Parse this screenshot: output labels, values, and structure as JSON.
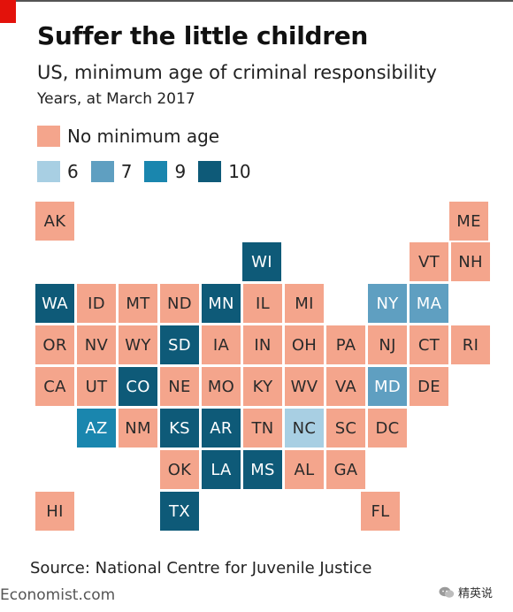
{
  "header": {
    "title": "Suffer the little children",
    "subtitle": "US, minimum age of criminal responsibility",
    "unit": "Years, at March 2017"
  },
  "colors": {
    "none": "#f4a58c",
    "6": "#a8cfe3",
    "7": "#5f9fc1",
    "9": "#1a86ae",
    "10": "#0e5a78",
    "brand_red": "#e3120b"
  },
  "legend": {
    "none_label": "No minimum age",
    "ages": [
      "6",
      "7",
      "9",
      "10"
    ]
  },
  "chart_data": {
    "type": "tile-map",
    "categories": [
      "No minimum age",
      "6",
      "7",
      "9",
      "10"
    ],
    "states": [
      {
        "abbr": "AK",
        "age": "none",
        "row": 0,
        "col": 0
      },
      {
        "abbr": "ME",
        "age": "none",
        "row": 0,
        "col": 10
      },
      {
        "abbr": "WI",
        "age": "10",
        "row": 1,
        "col": 5
      },
      {
        "abbr": "VT",
        "age": "none",
        "row": 1,
        "col": 9
      },
      {
        "abbr": "NH",
        "age": "none",
        "row": 1,
        "col": 10
      },
      {
        "abbr": "WA",
        "age": "10",
        "row": 2,
        "col": 0
      },
      {
        "abbr": "ID",
        "age": "none",
        "row": 2,
        "col": 1
      },
      {
        "abbr": "MT",
        "age": "none",
        "row": 2,
        "col": 2
      },
      {
        "abbr": "ND",
        "age": "none",
        "row": 2,
        "col": 3
      },
      {
        "abbr": "MN",
        "age": "10",
        "row": 2,
        "col": 4
      },
      {
        "abbr": "IL",
        "age": "none",
        "row": 2,
        "col": 5
      },
      {
        "abbr": "MI",
        "age": "none",
        "row": 2,
        "col": 6
      },
      {
        "abbr": "NY",
        "age": "7",
        "row": 2,
        "col": 8
      },
      {
        "abbr": "MA",
        "age": "7",
        "row": 2,
        "col": 9
      },
      {
        "abbr": "OR",
        "age": "none",
        "row": 3,
        "col": 0
      },
      {
        "abbr": "NV",
        "age": "none",
        "row": 3,
        "col": 1
      },
      {
        "abbr": "WY",
        "age": "none",
        "row": 3,
        "col": 2
      },
      {
        "abbr": "SD",
        "age": "10",
        "row": 3,
        "col": 3
      },
      {
        "abbr": "IA",
        "age": "none",
        "row": 3,
        "col": 4
      },
      {
        "abbr": "IN",
        "age": "none",
        "row": 3,
        "col": 5
      },
      {
        "abbr": "OH",
        "age": "none",
        "row": 3,
        "col": 6
      },
      {
        "abbr": "PA",
        "age": "none",
        "row": 3,
        "col": 7
      },
      {
        "abbr": "NJ",
        "age": "none",
        "row": 3,
        "col": 8
      },
      {
        "abbr": "CT",
        "age": "none",
        "row": 3,
        "col": 9
      },
      {
        "abbr": "RI",
        "age": "none",
        "row": 3,
        "col": 10
      },
      {
        "abbr": "CA",
        "age": "none",
        "row": 4,
        "col": 0
      },
      {
        "abbr": "UT",
        "age": "none",
        "row": 4,
        "col": 1
      },
      {
        "abbr": "CO",
        "age": "10",
        "row": 4,
        "col": 2
      },
      {
        "abbr": "NE",
        "age": "none",
        "row": 4,
        "col": 3
      },
      {
        "abbr": "MO",
        "age": "none",
        "row": 4,
        "col": 4
      },
      {
        "abbr": "KY",
        "age": "none",
        "row": 4,
        "col": 5
      },
      {
        "abbr": "WV",
        "age": "none",
        "row": 4,
        "col": 6
      },
      {
        "abbr": "VA",
        "age": "none",
        "row": 4,
        "col": 7
      },
      {
        "abbr": "MD",
        "age": "7",
        "row": 4,
        "col": 8
      },
      {
        "abbr": "DE",
        "age": "none",
        "row": 4,
        "col": 9
      },
      {
        "abbr": "AZ",
        "age": "9",
        "row": 5,
        "col": 1
      },
      {
        "abbr": "NM",
        "age": "none",
        "row": 5,
        "col": 2
      },
      {
        "abbr": "KS",
        "age": "10",
        "row": 5,
        "col": 3
      },
      {
        "abbr": "AR",
        "age": "10",
        "row": 5,
        "col": 4
      },
      {
        "abbr": "TN",
        "age": "none",
        "row": 5,
        "col": 5
      },
      {
        "abbr": "NC",
        "age": "6",
        "row": 5,
        "col": 6
      },
      {
        "abbr": "SC",
        "age": "none",
        "row": 5,
        "col": 7
      },
      {
        "abbr": "DC",
        "age": "none",
        "row": 5,
        "col": 8
      },
      {
        "abbr": "OK",
        "age": "none",
        "row": 6,
        "col": 3
      },
      {
        "abbr": "LA",
        "age": "10",
        "row": 6,
        "col": 4
      },
      {
        "abbr": "MS",
        "age": "10",
        "row": 6,
        "col": 5
      },
      {
        "abbr": "AL",
        "age": "none",
        "row": 6,
        "col": 6
      },
      {
        "abbr": "GA",
        "age": "none",
        "row": 6,
        "col": 7
      },
      {
        "abbr": "HI",
        "age": "none",
        "row": 7,
        "col": 0
      },
      {
        "abbr": "TX",
        "age": "10",
        "row": 7,
        "col": 3
      },
      {
        "abbr": "FL",
        "age": "none",
        "row": 7,
        "col": 8
      }
    ]
  },
  "footer": {
    "source": "Source: National Centre for Juvenile Justice",
    "site": "Economist.com",
    "watermark": "精英说"
  }
}
